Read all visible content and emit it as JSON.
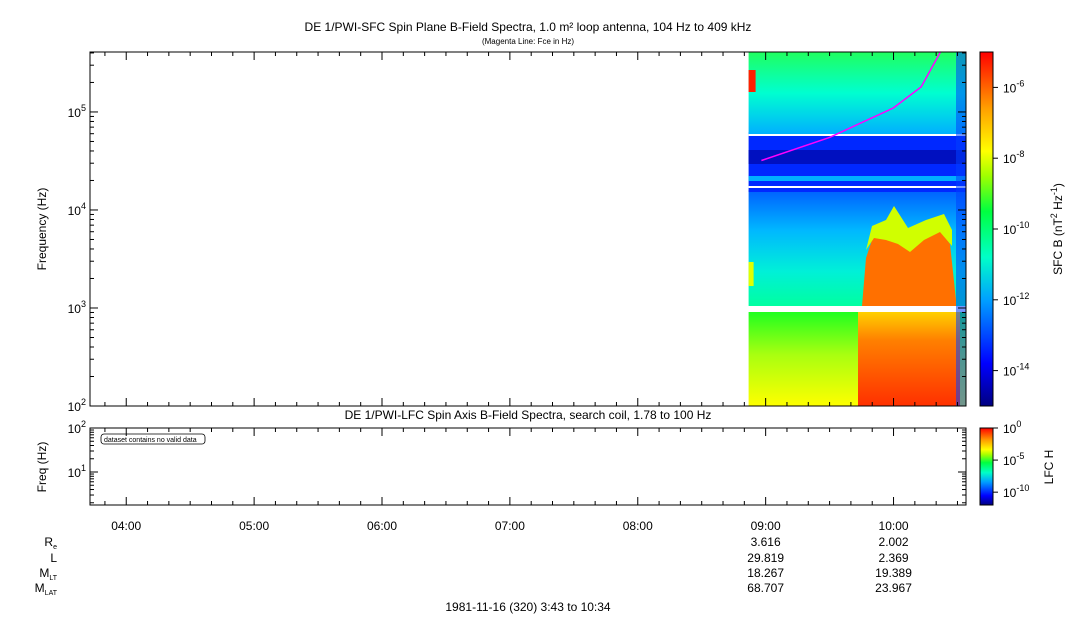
{
  "chart_data": [
    {
      "type": "heatmap",
      "title": "DE 1/PWI-SFC  Spin Plane B-Field Spectra, 1.0 m² loop antenna, 104 Hz to 409 kHz",
      "subtitle": "(Magenta Line: Fce in Hz)",
      "ylabel": "Frequency (Hz)",
      "yscale": "log",
      "ylim": [
        100,
        409000
      ],
      "y_ticks": [
        {
          "value": 100,
          "base": "10",
          "exp": "2"
        },
        {
          "value": 1000,
          "base": "10",
          "exp": "3"
        },
        {
          "value": 10000,
          "base": "10",
          "exp": "4"
        },
        {
          "value": 100000,
          "base": "10",
          "exp": "5"
        }
      ],
      "colorbar": {
        "label": "SFC B (nT² Hz⁻¹)",
        "label_base": "SFC B (nT",
        "label_sup1": "2",
        "label_mid": " Hz",
        "label_sup2": "-1",
        "label_end": ")",
        "scale": "log",
        "range": [
          1e-15,
          1e-05
        ],
        "ticks": [
          {
            "value": 1e-06,
            "base": "10",
            "exp": "-6"
          },
          {
            "value": 1e-08,
            "base": "10",
            "exp": "-8"
          },
          {
            "value": 1e-10,
            "base": "10",
            "exp": "-10"
          },
          {
            "value": 1e-12,
            "base": "10",
            "exp": "-12"
          },
          {
            "value": 1e-14,
            "base": "10",
            "exp": "-14"
          }
        ]
      },
      "data_window_start": "08:52",
      "fce_line_hz": [
        {
          "time": "08:58",
          "hz": 32000
        },
        {
          "time": "09:30",
          "hz": 55000
        },
        {
          "time": "10:00",
          "hz": 110000
        },
        {
          "time": "10:13",
          "hz": 180000
        },
        {
          "time": "10:22",
          "hz": 409000
        }
      ]
    },
    {
      "type": "heatmap",
      "title": "DE 1/PWI-LFC  Spin Axis B-Field Spectra, search coil, 1.78 to 100 Hz",
      "ylabel": "Freq (Hz)",
      "yscale": "log",
      "ylim": [
        1.78,
        100
      ],
      "y_ticks": [
        {
          "value": 10,
          "base": "10",
          "exp": "1"
        },
        {
          "value": 100,
          "base": "10",
          "exp": "2"
        }
      ],
      "annotation": "dataset contains no valid data",
      "colorbar": {
        "label": "LFC H",
        "scale": "log",
        "range": [
          1e-12,
          1
        ],
        "ticks": [
          {
            "value": 1,
            "base": "10",
            "exp": "0"
          },
          {
            "value": 1e-05,
            "base": "10",
            "exp": "-5"
          },
          {
            "value": 1e-10,
            "base": "10",
            "exp": "-10"
          }
        ]
      }
    }
  ],
  "time_axis": {
    "start": "03:43",
    "end": "10:34",
    "tick_labels": [
      "04:00",
      "05:00",
      "06:00",
      "07:00",
      "08:00",
      "09:00",
      "10:00"
    ]
  },
  "ephemeris": {
    "rows": [
      {
        "label": "R",
        "sub": "e",
        "values": [
          "3.616",
          "2.002"
        ]
      },
      {
        "label": "L",
        "sub": "",
        "values": [
          "29.819",
          "2.369"
        ]
      },
      {
        "label": "M",
        "sub": "LT",
        "values": [
          "18.267",
          "19.389"
        ]
      },
      {
        "label": "M",
        "sub": "LAT",
        "values": [
          "68.707",
          "23.967"
        ]
      }
    ],
    "value_times": [
      "09:00",
      "10:00"
    ]
  },
  "footer": "1981-11-16 (320) 3:43 to 10:34"
}
